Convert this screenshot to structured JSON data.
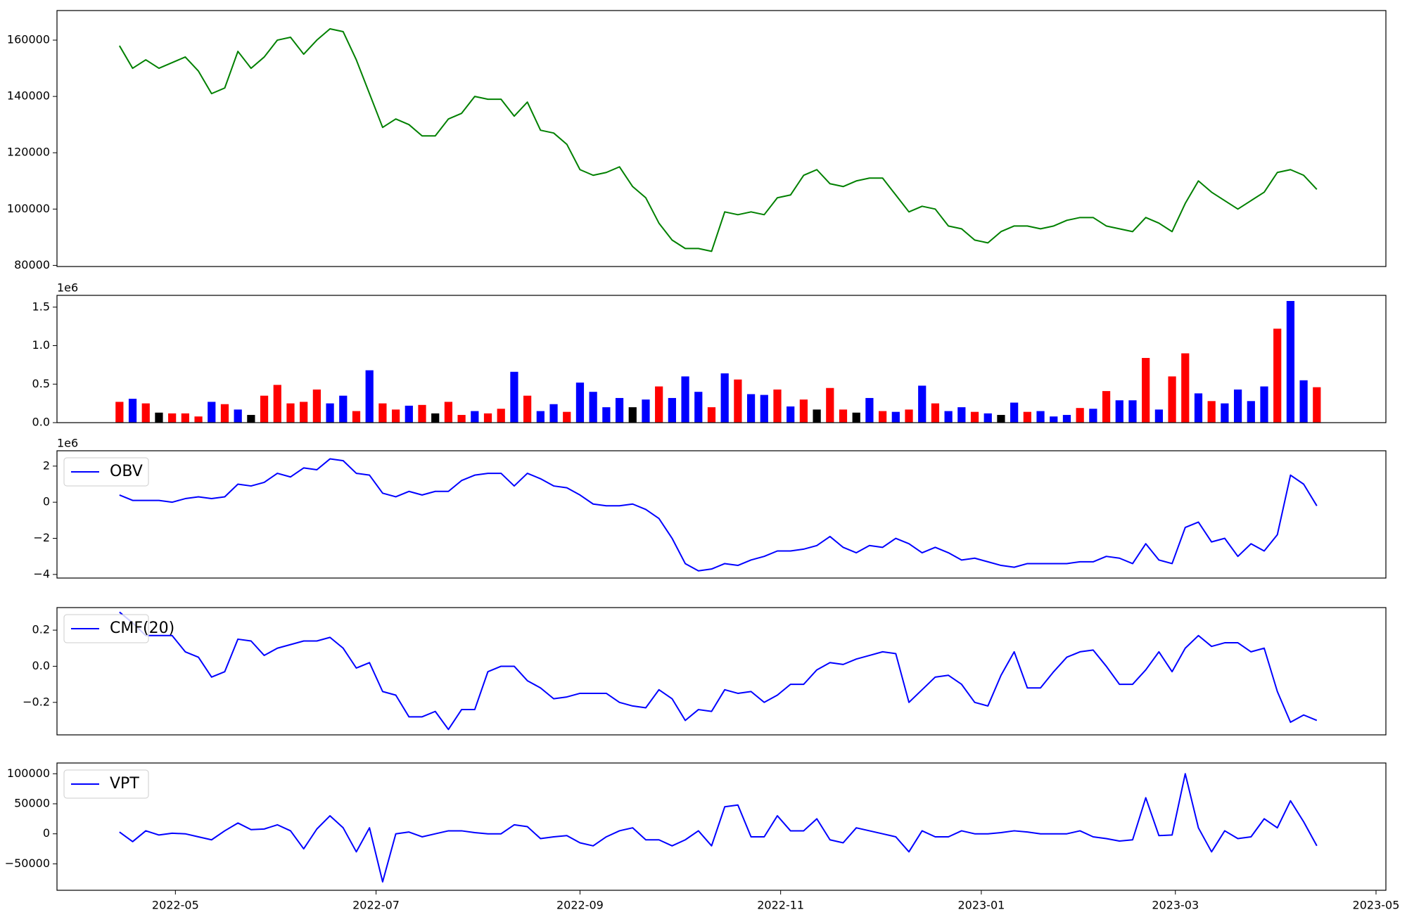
{
  "chart_data": [
    {
      "type": "line",
      "color": "green",
      "x": [
        19096,
        19100,
        19104,
        19108,
        19112,
        19116,
        19120,
        19124,
        19128,
        19132,
        19136,
        19140,
        19144,
        19148,
        19152,
        19156,
        19160,
        19164,
        19168,
        19172,
        19176,
        19180,
        19184,
        19188,
        19192,
        19196,
        19200,
        19204,
        19208,
        19212,
        19216,
        19220,
        19224,
        19228,
        19232,
        19236,
        19240,
        19244,
        19248,
        19252,
        19256,
        19260,
        19264,
        19268,
        19272,
        19276,
        19280,
        19284,
        19288,
        19292,
        19296,
        19300,
        19304,
        19308,
        19312,
        19316,
        19320,
        19324,
        19328,
        19332,
        19336,
        19340,
        19344,
        19348,
        19352,
        19356,
        19360,
        19364,
        19368,
        19372,
        19376,
        19380,
        19384,
        19388,
        19392,
        19396,
        19400,
        19404,
        19408,
        19412,
        19416,
        19420,
        19424,
        19428,
        19432,
        19436,
        19440,
        19444,
        19448,
        19452,
        19456,
        19460
      ],
      "values": [
        158000,
        150000,
        153000,
        150000,
        152000,
        154000,
        149000,
        141000,
        143000,
        156000,
        150000,
        154000,
        160000,
        161000,
        155000,
        160000,
        164000,
        163000,
        153000,
        141000,
        129000,
        132000,
        130000,
        126000,
        126000,
        132000,
        134000,
        140000,
        139000,
        139000,
        133000,
        138000,
        128000,
        127000,
        123000,
        114000,
        112000,
        113000,
        115000,
        108000,
        104000,
        95000,
        89000,
        86000,
        86000,
        85000,
        99000,
        98000,
        99000,
        98000,
        104000,
        105000,
        112000,
        114000,
        109000,
        108000,
        110000,
        111000,
        111000,
        105000,
        99000,
        101000,
        100000,
        94000,
        93000,
        89000,
        88000,
        92000,
        94000,
        94000,
        93000,
        94000,
        96000,
        97000,
        97000,
        94000,
        93000,
        92000,
        97000,
        95000,
        92000,
        102000,
        110000,
        106000,
        103000,
        100000,
        103000,
        106000,
        113000,
        114000,
        112000,
        107000
      ],
      "xlim": [
        19077,
        19481
      ],
      "ylim": [
        79600,
        170500
      ],
      "yticks": [
        80000,
        100000,
        120000,
        140000,
        160000
      ]
    },
    {
      "type": "bar",
      "offset_label": "1e6",
      "x": [
        19096,
        19100,
        19104,
        19108,
        19112,
        19116,
        19120,
        19124,
        19128,
        19132,
        19136,
        19140,
        19144,
        19148,
        19152,
        19156,
        19160,
        19164,
        19168,
        19172,
        19176,
        19180,
        19184,
        19188,
        19192,
        19196,
        19200,
        19204,
        19208,
        19212,
        19216,
        19220,
        19224,
        19228,
        19232,
        19236,
        19240,
        19244,
        19248,
        19252,
        19256,
        19260,
        19264,
        19268,
        19272,
        19276,
        19280,
        19284,
        19288,
        19292,
        19296,
        19300,
        19304,
        19308,
        19312,
        19316,
        19320,
        19324,
        19328,
        19332,
        19336,
        19340,
        19344,
        19348,
        19352,
        19356,
        19360,
        19364,
        19368,
        19372,
        19376,
        19380,
        19384,
        19388,
        19392,
        19396,
        19400,
        19404,
        19408,
        19412,
        19416,
        19420,
        19424,
        19428,
        19432,
        19436,
        19440,
        19444,
        19448,
        19452,
        19456,
        19460
      ],
      "values": [
        270000,
        310000,
        250000,
        130000,
        120000,
        120000,
        80000,
        270000,
        240000,
        170000,
        100000,
        350000,
        490000,
        250000,
        270000,
        430000,
        250000,
        350000,
        150000,
        680000,
        250000,
        170000,
        220000,
        230000,
        120000,
        270000,
        100000,
        150000,
        120000,
        180000,
        660000,
        350000,
        150000,
        240000,
        140000,
        520000,
        400000,
        200000,
        320000,
        200000,
        300000,
        470000,
        320000,
        600000,
        400000,
        200000,
        640000,
        560000,
        370000,
        360000,
        430000,
        210000,
        300000,
        170000,
        450000,
        170000,
        130000,
        320000,
        150000,
        140000,
        170000,
        480000,
        250000,
        150000,
        200000,
        140000,
        120000,
        100000,
        260000,
        140000,
        150000,
        80000,
        100000,
        190000,
        180000,
        410000,
        290000,
        290000,
        840000,
        170000,
        600000,
        900000,
        380000,
        280000,
        250000,
        430000,
        280000,
        470000,
        1220000,
        1580000,
        550000,
        460000
      ],
      "colors": [
        "red",
        "blue",
        "red",
        "black",
        "red",
        "red",
        "red",
        "blue",
        "red",
        "blue",
        "black",
        "red",
        "red",
        "red",
        "red",
        "red",
        "blue",
        "blue",
        "red",
        "blue",
        "red",
        "red",
        "blue",
        "red",
        "black",
        "red",
        "red",
        "blue",
        "red",
        "red",
        "blue",
        "red",
        "blue",
        "blue",
        "red",
        "blue",
        "blue",
        "blue",
        "blue",
        "black",
        "blue",
        "red",
        "blue",
        "blue",
        "blue",
        "red",
        "blue",
        "red",
        "blue",
        "blue",
        "red",
        "blue",
        "red",
        "black",
        "red",
        "red",
        "black",
        "blue",
        "red",
        "blue",
        "red",
        "blue",
        "red",
        "blue",
        "blue",
        "red",
        "blue",
        "black",
        "blue",
        "red",
        "blue",
        "blue",
        "blue",
        "red",
        "blue",
        "red",
        "blue",
        "blue",
        "red",
        "blue",
        "red",
        "red",
        "blue",
        "red",
        "blue",
        "blue",
        "blue",
        "blue",
        "red",
        "blue",
        "blue",
        "red"
      ],
      "xlim": [
        19077,
        19481
      ],
      "ylim": [
        0,
        1653000
      ],
      "yticks": [
        {
          "value": 0,
          "label": "0.0"
        },
        {
          "value": 500000,
          "label": "0.5"
        },
        {
          "value": 1000000,
          "label": "1.0"
        },
        {
          "value": 1500000,
          "label": "1.5"
        }
      ]
    },
    {
      "type": "line",
      "offset_label": "1e6",
      "legend": "upper left",
      "x": [
        19096,
        19100,
        19104,
        19108,
        19112,
        19116,
        19120,
        19124,
        19128,
        19132,
        19136,
        19140,
        19144,
        19148,
        19152,
        19156,
        19160,
        19164,
        19168,
        19172,
        19176,
        19180,
        19184,
        19188,
        19192,
        19196,
        19200,
        19204,
        19208,
        19212,
        19216,
        19220,
        19224,
        19228,
        19232,
        19236,
        19240,
        19244,
        19248,
        19252,
        19256,
        19260,
        19264,
        19268,
        19272,
        19276,
        19280,
        19284,
        19288,
        19292,
        19296,
        19300,
        19304,
        19308,
        19312,
        19316,
        19320,
        19324,
        19328,
        19332,
        19336,
        19340,
        19344,
        19348,
        19352,
        19356,
        19360,
        19364,
        19368,
        19372,
        19376,
        19380,
        19384,
        19388,
        19392,
        19396,
        19400,
        19404,
        19408,
        19412,
        19416,
        19420,
        19424,
        19428,
        19432,
        19436,
        19440,
        19444,
        19448,
        19452,
        19456,
        19460
      ],
      "series": [
        {
          "name": "OBV",
          "color": "blue",
          "values": [
            400000,
            100000,
            100000,
            100000,
            0,
            200000,
            300000,
            200000,
            300000,
            1000000,
            900000,
            1100000,
            1600000,
            1400000,
            1900000,
            1800000,
            2400000,
            2300000,
            1600000,
            1500000,
            500000,
            300000,
            600000,
            400000,
            600000,
            600000,
            1200000,
            1500000,
            1600000,
            1600000,
            900000,
            1600000,
            1300000,
            900000,
            800000,
            400000,
            -100000,
            -200000,
            -200000,
            -100000,
            -400000,
            -900000,
            -2000000,
            -3400000,
            -3800000,
            -3700000,
            -3400000,
            -3500000,
            -3200000,
            -3000000,
            -2700000,
            -2700000,
            -2600000,
            -2400000,
            -1900000,
            -2500000,
            -2800000,
            -2400000,
            -2500000,
            -2000000,
            -2300000,
            -2800000,
            -2500000,
            -2800000,
            -3200000,
            -3100000,
            -3300000,
            -3500000,
            -3600000,
            -3400000,
            -3400000,
            -3400000,
            -3400000,
            -3300000,
            -3300000,
            -3000000,
            -3100000,
            -3400000,
            -2300000,
            -3200000,
            -3400000,
            -1400000,
            -1100000,
            -2200000,
            -2000000,
            -3000000,
            -2300000,
            -2700000,
            -1800000,
            1500000,
            1000000,
            -200000
          ]
        }
      ],
      "xlim": [
        19077,
        19481
      ],
      "ylim": [
        -4200000,
        2850000
      ],
      "yticks": [
        {
          "value": -4000000,
          "label": "−4"
        },
        {
          "value": -2000000,
          "label": "−2"
        },
        {
          "value": 0,
          "label": "0"
        },
        {
          "value": 2000000,
          "label": "2"
        }
      ]
    },
    {
      "type": "line",
      "legend": "upper left",
      "x": [
        19096,
        19100,
        19104,
        19108,
        19112,
        19116,
        19120,
        19124,
        19128,
        19132,
        19136,
        19140,
        19144,
        19148,
        19152,
        19156,
        19160,
        19164,
        19168,
        19172,
        19176,
        19180,
        19184,
        19188,
        19192,
        19196,
        19200,
        19204,
        19208,
        19212,
        19216,
        19220,
        19224,
        19228,
        19232,
        19236,
        19240,
        19244,
        19248,
        19252,
        19256,
        19260,
        19264,
        19268,
        19272,
        19276,
        19280,
        19284,
        19288,
        19292,
        19296,
        19300,
        19304,
        19308,
        19312,
        19316,
        19320,
        19324,
        19328,
        19332,
        19336,
        19340,
        19344,
        19348,
        19352,
        19356,
        19360,
        19364,
        19368,
        19372,
        19376,
        19380,
        19384,
        19388,
        19392,
        19396,
        19400,
        19404,
        19408,
        19412,
        19416,
        19420,
        19424,
        19428,
        19432,
        19436,
        19440,
        19444,
        19448,
        19452,
        19456,
        19460
      ],
      "series": [
        {
          "name": "CMF(20)",
          "color": "blue",
          "values": [
            0.3,
            0.24,
            0.17,
            0.17,
            0.17,
            0.08,
            0.05,
            -0.06,
            -0.03,
            0.15,
            0.14,
            0.06,
            0.1,
            0.12,
            0.14,
            0.14,
            0.16,
            0.1,
            -0.01,
            0.02,
            -0.14,
            -0.16,
            -0.28,
            -0.28,
            -0.25,
            -0.35,
            -0.24,
            -0.24,
            -0.03,
            0.0,
            0.0,
            -0.08,
            -0.12,
            -0.18,
            -0.17,
            -0.15,
            -0.15,
            -0.15,
            -0.2,
            -0.22,
            -0.23,
            -0.13,
            -0.18,
            -0.3,
            -0.24,
            -0.25,
            -0.13,
            -0.15,
            -0.14,
            -0.2,
            -0.16,
            -0.1,
            -0.1,
            -0.02,
            0.02,
            0.01,
            0.04,
            0.06,
            0.08,
            0.07,
            -0.2,
            -0.13,
            -0.06,
            -0.05,
            -0.1,
            -0.2,
            -0.22,
            -0.05,
            0.08,
            -0.12,
            -0.12,
            -0.03,
            0.05,
            0.08,
            0.09,
            0.0,
            -0.1,
            -0.1,
            -0.02,
            0.08,
            -0.03,
            0.1,
            0.17,
            0.11,
            0.13,
            0.13,
            0.08,
            0.1,
            -0.14,
            -0.31,
            -0.27,
            -0.3
          ]
        }
      ],
      "xlim": [
        19077,
        19481
      ],
      "ylim": [
        -0.38,
        0.325
      ],
      "yticks": [
        {
          "value": -0.2,
          "label": "−0.2"
        },
        {
          "value": 0,
          "label": "0.0"
        },
        {
          "value": 0.2,
          "label": "0.2"
        }
      ]
    },
    {
      "type": "line",
      "legend": "upper left",
      "x": [
        19096,
        19100,
        19104,
        19108,
        19112,
        19116,
        19120,
        19124,
        19128,
        19132,
        19136,
        19140,
        19144,
        19148,
        19152,
        19156,
        19160,
        19164,
        19168,
        19172,
        19176,
        19180,
        19184,
        19188,
        19192,
        19196,
        19200,
        19204,
        19208,
        19212,
        19216,
        19220,
        19224,
        19228,
        19232,
        19236,
        19240,
        19244,
        19248,
        19252,
        19256,
        19260,
        19264,
        19268,
        19272,
        19276,
        19280,
        19284,
        19288,
        19292,
        19296,
        19300,
        19304,
        19308,
        19312,
        19316,
        19320,
        19324,
        19328,
        19332,
        19336,
        19340,
        19344,
        19348,
        19352,
        19356,
        19360,
        19364,
        19368,
        19372,
        19376,
        19380,
        19384,
        19388,
        19392,
        19396,
        19400,
        19404,
        19408,
        19412,
        19416,
        19420,
        19424,
        19428,
        19432,
        19436,
        19440,
        19444,
        19448,
        19452,
        19456,
        19460
      ],
      "series": [
        {
          "name": "VPT",
          "color": "blue",
          "values": [
            3000,
            -13000,
            5000,
            -2000,
            1000,
            0,
            -5000,
            -10000,
            5000,
            18000,
            7000,
            8000,
            15000,
            5000,
            -25000,
            8000,
            30000,
            10000,
            -30000,
            10000,
            -80000,
            0,
            3000,
            -5000,
            0,
            5000,
            5000,
            2000,
            0,
            0,
            15000,
            12000,
            -8000,
            -5000,
            -3000,
            -15000,
            -20000,
            -5000,
            5000,
            10000,
            -10000,
            -10000,
            -20000,
            -10000,
            5000,
            -20000,
            45000,
            48000,
            -5000,
            -5000,
            30000,
            5000,
            5000,
            25000,
            -10000,
            -15000,
            10000,
            5000,
            0,
            -5000,
            -30000,
            5000,
            -5000,
            -5000,
            5000,
            0,
            0,
            2000,
            5000,
            3000,
            0,
            0,
            0,
            5000,
            -5000,
            -8000,
            -12000,
            -10000,
            60000,
            -3000,
            -2000,
            100000,
            10000,
            -30000,
            5000,
            -8000,
            -5000,
            25000,
            10000,
            55000,
            20000,
            -20000
          ]
        }
      ],
      "xlim": [
        19077,
        19481
      ],
      "ylim": [
        -94000,
        117900
      ],
      "yticks": [
        {
          "value": -50000,
          "label": "−50000"
        },
        0,
        50000,
        100000
      ],
      "xticks": [
        {
          "value": 19113,
          "label": "2022-05"
        },
        {
          "value": 19174,
          "label": "2022-07"
        },
        {
          "value": 19236,
          "label": "2022-09"
        },
        {
          "value": 19297,
          "label": "2022-11"
        },
        {
          "value": 19358,
          "label": "2023-01"
        },
        {
          "value": 19417,
          "label": "2023-03"
        },
        {
          "value": 19478,
          "label": "2023-05"
        }
      ]
    }
  ]
}
